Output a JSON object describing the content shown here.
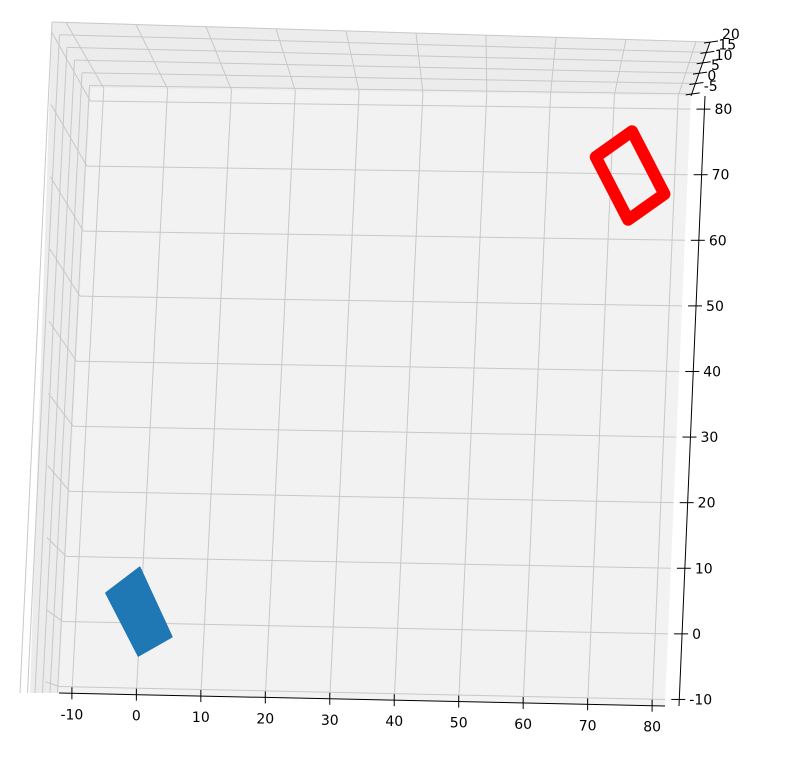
{
  "chart_data": {
    "type": "3d-surface",
    "title": "",
    "xlabel": "",
    "ylabel": "",
    "zlabel": "",
    "x_ticks": [
      -10,
      0,
      10,
      20,
      30,
      40,
      50,
      60,
      70,
      80
    ],
    "y_ticks": [
      -10,
      0,
      10,
      20,
      30,
      40,
      50,
      60,
      70,
      80
    ],
    "z_ticks": [
      -5,
      0,
      5,
      10,
      15,
      20
    ],
    "xlim": [
      -12,
      82
    ],
    "ylim": [
      -11,
      82
    ],
    "zlim": [
      -6,
      20
    ],
    "grid": true,
    "objects": [
      {
        "shape": "filled-box",
        "color": "#1f77b4",
        "outline": [
          [
            -5.5,
            4.5
          ],
          [
            -0.5,
            8.5
          ],
          [
            5,
            -2
          ],
          [
            0,
            -5
          ]
        ]
      },
      {
        "shape": "rectangle-frame",
        "color": "#ff0000",
        "outline": [
          [
            67.5,
            72.5
          ],
          [
            73,
            76.5
          ],
          [
            78.5,
            67
          ],
          [
            73,
            63
          ]
        ]
      }
    ]
  }
}
